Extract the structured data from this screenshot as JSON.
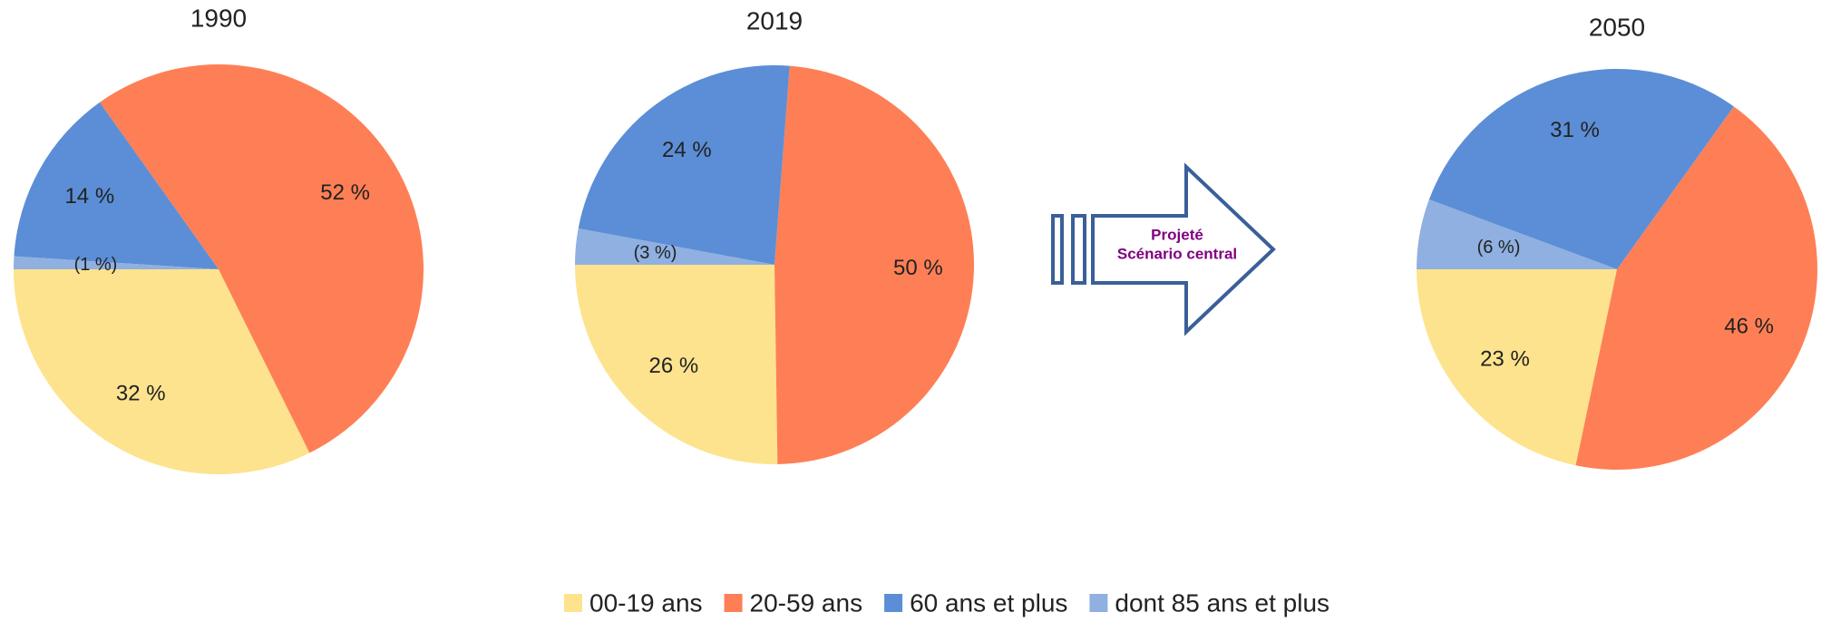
{
  "chart_data": [
    {
      "type": "pie",
      "title": "1990",
      "categories": [
        "00-19 ans",
        "20-59 ans",
        "60 ans et plus",
        "dont 85 ans et plus"
      ],
      "values": [
        32,
        52,
        14,
        1
      ],
      "value_labels": [
        "32 %",
        "52 %",
        "14 %",
        "(1 %)"
      ],
      "colors": [
        "#fde38d",
        "#fe7f55",
        "#5b8ed6",
        "#8fb0e0"
      ]
    },
    {
      "type": "pie",
      "title": "2019",
      "categories": [
        "00-19 ans",
        "20-59 ans",
        "60 ans et plus",
        "dont 85 ans et plus"
      ],
      "values": [
        26,
        50,
        24,
        3
      ],
      "value_labels": [
        "26 %",
        "50 %",
        "24 %",
        "(3 %)"
      ],
      "colors": [
        "#fde38d",
        "#fe7f55",
        "#5b8ed6",
        "#8fb0e0"
      ]
    },
    {
      "type": "pie",
      "title": "2050",
      "categories": [
        "00-19 ans",
        "20-59 ans",
        "60 ans et plus",
        "dont 85 ans et plus"
      ],
      "values": [
        23,
        46,
        31,
        6
      ],
      "value_labels": [
        "23 %",
        "46 %",
        "31 %",
        "(6 %)"
      ],
      "colors": [
        "#fde38d",
        "#fe7f55",
        "#5b8ed6",
        "#8fb0e0"
      ]
    }
  ],
  "arrow": {
    "lines": [
      "Projeté",
      "Scénario central"
    ]
  }
}
